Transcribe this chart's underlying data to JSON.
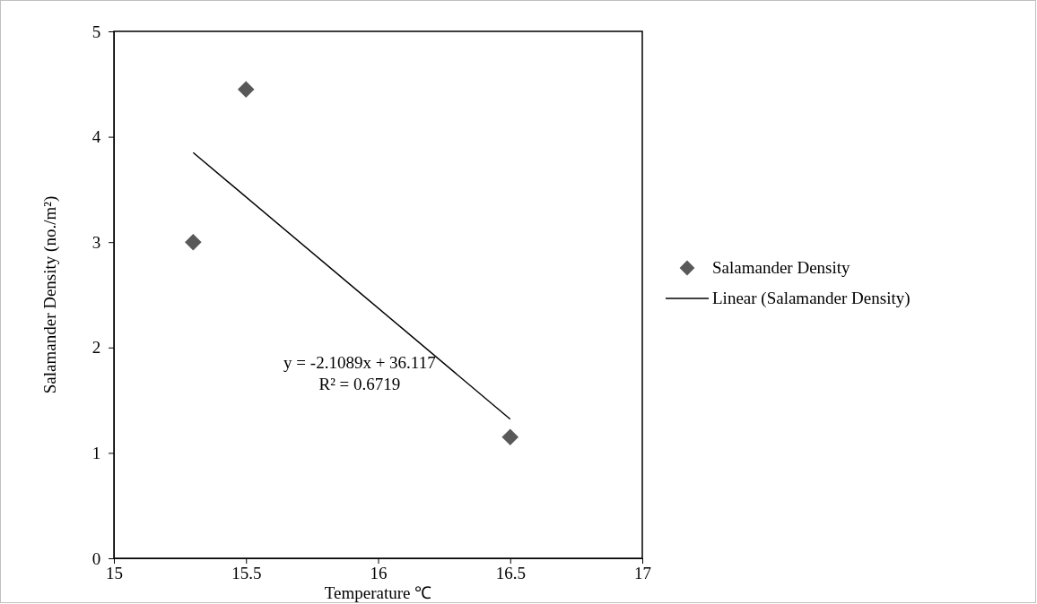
{
  "chart_data": {
    "type": "scatter",
    "xlabel": "Temperature ℃",
    "ylabel": "Salamander Density (no./m²)",
    "xlim": [
      15,
      17
    ],
    "xticks": [
      15,
      15.5,
      16,
      16.5,
      17
    ],
    "ylim": [
      0,
      5
    ],
    "yticks": [
      0,
      1,
      2,
      3,
      4,
      5
    ],
    "grid": false,
    "legend": "right",
    "series": [
      {
        "name": "Salamander Density",
        "marker": "diamond",
        "color": "#595959",
        "x": [
          15.3,
          15.5,
          16.5
        ],
        "values": [
          3.0,
          4.45,
          1.15
        ]
      },
      {
        "name": "Linear (Salamander Density)",
        "type": "line",
        "marker": "none",
        "color": "#000000",
        "line_style": "solid",
        "x": [
          15.3,
          16.5
        ],
        "values": [
          3.85,
          1.32
        ]
      }
    ],
    "annotations": [
      "y = -2.1089x + 36.117",
      "R² = 0.6719"
    ]
  }
}
